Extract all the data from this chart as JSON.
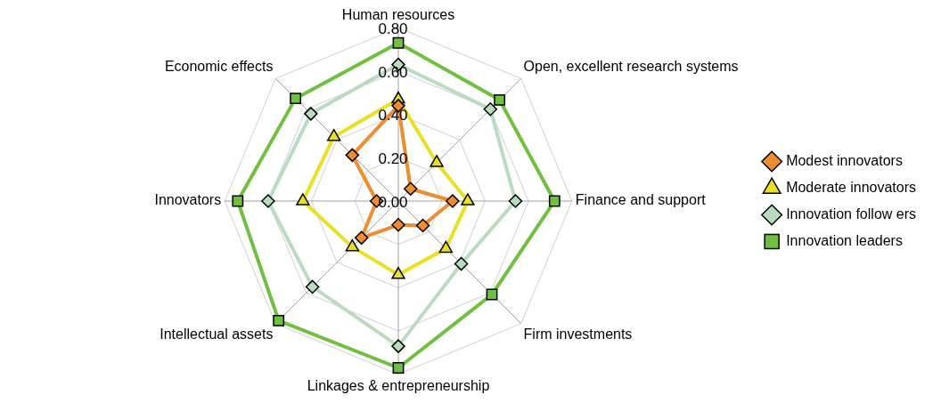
{
  "chart_data": {
    "type": "radar",
    "categories": [
      "Human resources",
      "Open, excellent research systems",
      "Finance and support",
      "Firm investments",
      "Linkages & entrepreneurship",
      "Intellectual assets",
      "Innovators",
      "Economic effects"
    ],
    "series": [
      {
        "name": "Modest innovators",
        "color": "#f08c30",
        "marker": "diamond",
        "values": [
          0.44,
          0.08,
          0.25,
          0.16,
          0.11,
          0.24,
          0.1,
          0.3
        ]
      },
      {
        "name": "Moderate innovators",
        "color": "#e8e020",
        "marker": "triangle",
        "values": [
          0.47,
          0.25,
          0.32,
          0.31,
          0.34,
          0.3,
          0.44,
          0.42
        ]
      },
      {
        "name": "Innovation follow ers",
        "color": "#b8dcc0",
        "marker": "diamond",
        "values": [
          0.63,
          0.6,
          0.54,
          0.41,
          0.67,
          0.56,
          0.6,
          0.57
        ]
      },
      {
        "name": "Innovation leaders",
        "color": "#70c040",
        "marker": "square",
        "values": [
          0.73,
          0.66,
          0.72,
          0.61,
          0.77,
          0.78,
          0.74,
          0.67
        ]
      }
    ],
    "ylim": [
      0,
      0.8
    ],
    "yticks": [
      {
        "value": 0,
        "label": "0.00"
      },
      {
        "value": 0.2,
        "label": "0.20"
      },
      {
        "value": 0.4,
        "label": "0.40"
      },
      {
        "value": 0.6,
        "label": "0.60"
      },
      {
        "value": 0.8,
        "label": "0.80"
      }
    ],
    "grid": true,
    "legend": "right"
  }
}
